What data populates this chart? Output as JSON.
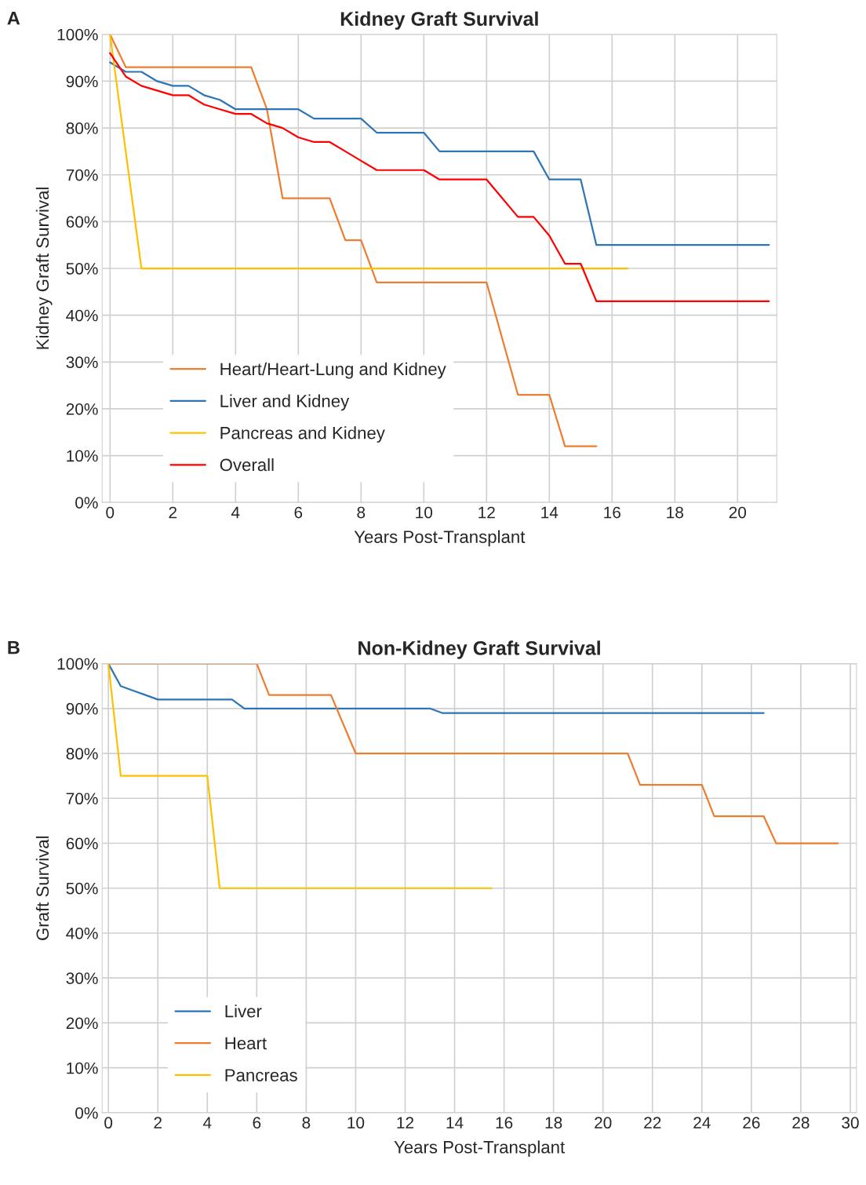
{
  "chart_data": [
    {
      "type": "line",
      "title": "Kidney Graft Survival",
      "xlabel": "Years Post-Transplant",
      "ylabel": "Kidney Graft Survival",
      "annotations": [
        "A"
      ],
      "xlim": [
        -0.25,
        21.25
      ],
      "xticks": [
        0,
        2,
        4,
        6,
        8,
        10,
        12,
        14,
        16,
        18,
        20
      ],
      "ylim": [
        0,
        100
      ],
      "yticks": [
        {
          "value": 0,
          "label": "0%"
        },
        {
          "value": 10,
          "label": "10%"
        },
        {
          "value": 20,
          "label": "20%"
        },
        {
          "value": 30,
          "label": "30%"
        },
        {
          "value": 40,
          "label": "40%"
        },
        {
          "value": 50,
          "label": "50%"
        },
        {
          "value": 60,
          "label": "60%"
        },
        {
          "value": 70,
          "label": "70%"
        },
        {
          "value": 80,
          "label": "80%"
        },
        {
          "value": 90,
          "label": "90%"
        },
        {
          "value": 100,
          "label": "100%"
        }
      ],
      "grid": true,
      "legend": "bottom left",
      "marker": "none",
      "line_style": "solid",
      "series": [
        {
          "name": "Heart/Heart-Lung and Kidney",
          "color": "#ed7d31",
          "x": [
            0,
            0.5,
            4.5,
            5,
            5.5,
            7,
            7.5,
            8,
            8.5,
            12,
            13,
            14,
            14.5,
            15.5
          ],
          "values": [
            100,
            93,
            93,
            84,
            65,
            65,
            56,
            56,
            47,
            47,
            23,
            23,
            12,
            12
          ]
        },
        {
          "name": "Liver and Kidney",
          "color": "#2e75b6",
          "x": [
            0,
            0.5,
            1,
            1.5,
            2,
            2.5,
            3,
            3.5,
            4,
            6,
            6.5,
            8,
            8.5,
            10,
            10.5,
            13.5,
            14,
            15,
            15.5,
            21
          ],
          "values": [
            94,
            92,
            92,
            90,
            89,
            89,
            87,
            86,
            84,
            84,
            82,
            82,
            79,
            79,
            75,
            75,
            69,
            69,
            55,
            55
          ]
        },
        {
          "name": "Pancreas and Kidney",
          "color": "#ffc000",
          "x": [
            0,
            1,
            16.5
          ],
          "values": [
            100,
            50,
            50
          ]
        },
        {
          "name": "Overall",
          "color": "#ff0000",
          "x": [
            0,
            0.5,
            1,
            1.5,
            2,
            2.5,
            3,
            3.5,
            4,
            4.5,
            5,
            5.5,
            6,
            6.5,
            7,
            7.5,
            8,
            8.5,
            10,
            10.5,
            12,
            13,
            13.5,
            14,
            14.5,
            15,
            15.5,
            21
          ],
          "values": [
            96,
            91,
            89,
            88,
            87,
            87,
            85,
            84,
            83,
            83,
            81,
            80,
            78,
            77,
            77,
            75,
            73,
            71,
            71,
            69,
            69,
            61,
            61,
            57,
            51,
            51,
            43,
            43
          ]
        }
      ]
    },
    {
      "type": "line",
      "title": "Non-Kidney Graft Survival",
      "xlabel": "Years Post-Transplant",
      "ylabel": "Graft Survival",
      "annotations": [
        "B"
      ],
      "xlim": [
        -0.25,
        30.25
      ],
      "xticks": [
        0,
        2,
        4,
        6,
        8,
        10,
        12,
        14,
        16,
        18,
        20,
        22,
        24,
        26,
        28,
        30
      ],
      "ylim": [
        0,
        100
      ],
      "yticks": [
        {
          "value": 0,
          "label": "0%"
        },
        {
          "value": 10,
          "label": "10%"
        },
        {
          "value": 20,
          "label": "20%"
        },
        {
          "value": 30,
          "label": "30%"
        },
        {
          "value": 40,
          "label": "40%"
        },
        {
          "value": 50,
          "label": "50%"
        },
        {
          "value": 60,
          "label": "60%"
        },
        {
          "value": 70,
          "label": "70%"
        },
        {
          "value": 80,
          "label": "80%"
        },
        {
          "value": 90,
          "label": "90%"
        },
        {
          "value": 100,
          "label": "100%"
        }
      ],
      "grid": true,
      "legend": "bottom left",
      "marker": "none",
      "line_style": "solid",
      "series": [
        {
          "name": "Liver",
          "color": "#2e75b6",
          "x": [
            0,
            0.5,
            1,
            1.5,
            2,
            5,
            5.5,
            13,
            13.5,
            26.5
          ],
          "values": [
            100,
            95,
            94,
            93,
            92,
            92,
            90,
            90,
            89,
            89
          ]
        },
        {
          "name": "Heart",
          "color": "#ed7d31",
          "x": [
            0,
            6,
            6.5,
            9,
            10,
            21,
            21.5,
            24,
            24.5,
            26.5,
            27,
            29.5
          ],
          "values": [
            100,
            100,
            93,
            93,
            80,
            80,
            73,
            73,
            66,
            66,
            60,
            60
          ]
        },
        {
          "name": "Pancreas",
          "color": "#ffc000",
          "x": [
            0,
            0.5,
            4,
            4.5,
            15.5
          ],
          "values": [
            100,
            75,
            75,
            50,
            50
          ]
        }
      ]
    }
  ]
}
